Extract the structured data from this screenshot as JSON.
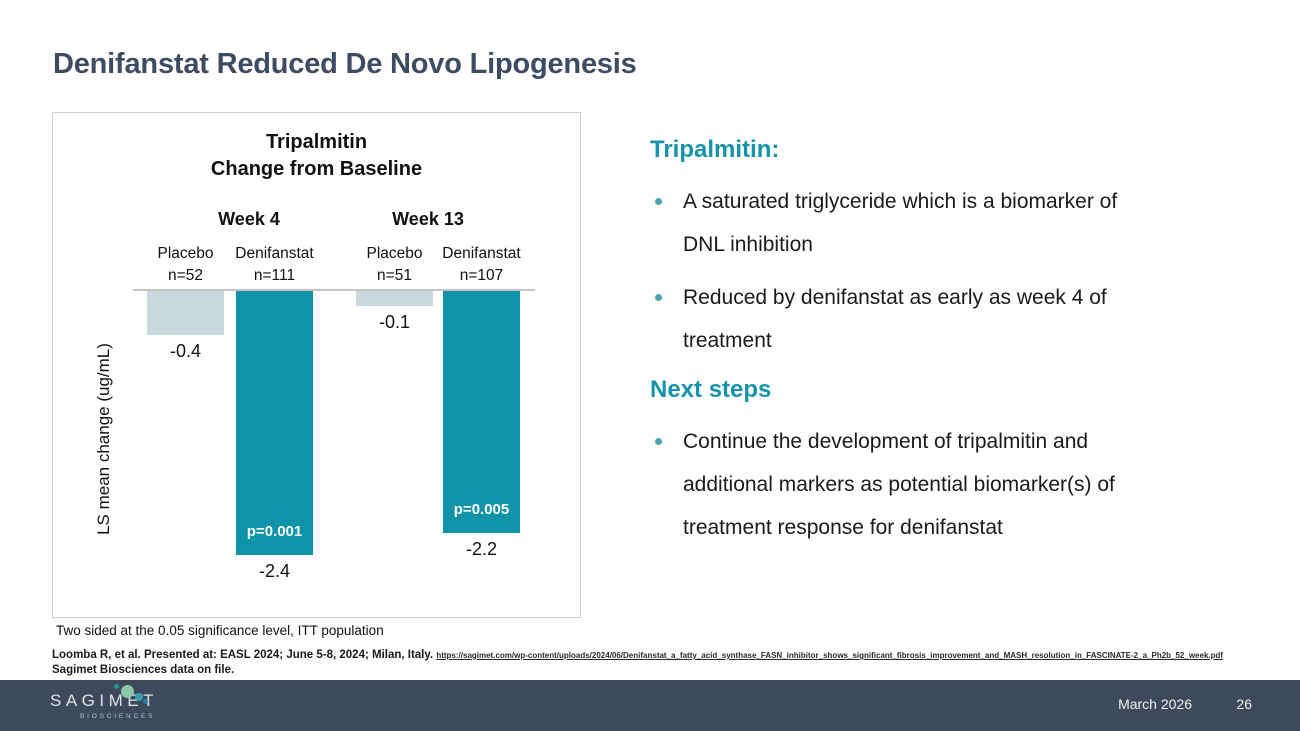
{
  "slide": {
    "title": "Denifanstat Reduced De Novo Lipogenesis"
  },
  "chart_data": {
    "type": "bar",
    "title": "Tripalmitin",
    "subtitle": "Change from Baseline",
    "ylabel": "LS mean change (ug/mL)",
    "baseline_value": 0,
    "groups": [
      {
        "week": "Week 4",
        "bars": [
          {
            "arm": "Placebo",
            "n": "n=52",
            "value": -0.4,
            "series": "placebo",
            "p_value": null
          },
          {
            "arm": "Denifanstat",
            "n": "n=111",
            "value": -2.4,
            "series": "denifanstat",
            "p_value": "p=0.001"
          }
        ]
      },
      {
        "week": "Week 13",
        "bars": [
          {
            "arm": "Placebo",
            "n": "n=51",
            "value": -0.1,
            "series": "placebo",
            "p_value": null
          },
          {
            "arm": "Denifanstat",
            "n": "n=107",
            "value": -2.2,
            "series": "denifanstat",
            "p_value": "p=0.005"
          }
        ]
      }
    ],
    "series_colors": {
      "placebo": "#c9d9df",
      "denifanstat": "#0e93a9"
    },
    "legend_position": "none",
    "grid": false
  },
  "right_panel": {
    "heading1": "Tripalmitin:",
    "bullets1": [
      "A saturated triglyceride which is a biomarker of DNL inhibition",
      "Reduced by denifanstat as early as week 4 of treatment"
    ],
    "heading2": "Next steps",
    "bullets2": [
      "Continue the development of tripalmitin and additional markers as potential biomarker(s) of treatment response for denifanstat"
    ]
  },
  "footnotes": {
    "chart_note": "Two sided at the 0.05 significance level, ITT population",
    "reference_text": "Loomba R, et al. Presented at: EASL 2024; June 5-8, 2024; Milan, Italy.",
    "reference_link": "https://sagimet.com/wp-content/uploads/2024/06/Denifanstat_a_fatty_acid_synthase_FASN_inhibitor_shows_significant_fibrosis_improvement_and_MASH_resolution_in_FASCINATE-2_a_Ph2b_52_week.pdf",
    "data_on_file": "Sagimet Biosciences data on file."
  },
  "footer": {
    "logo_text": "SAGIMET",
    "logo_subtext": "BIOSCIENCES",
    "date": "March 2026",
    "page_number": "26"
  },
  "colors": {
    "title_dark": "#3d4c63",
    "teal_heading": "#1793a9",
    "bar_teal": "#0e93a9",
    "bar_light": "#c9d9df",
    "bullet": "#4aa5ab",
    "footer_bg": "#3e4a5b",
    "baseline": "#c4c4c4",
    "panel_border": "#cfcfcf"
  }
}
